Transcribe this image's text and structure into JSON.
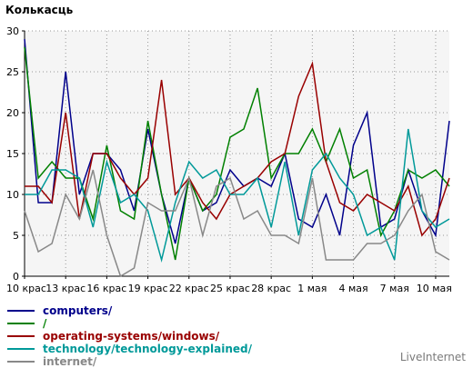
{
  "chart_data": {
    "type": "line",
    "ylabel": "Колькасць",
    "ylim": [
      0,
      30
    ],
    "yticks": [
      0,
      5,
      10,
      15,
      20,
      25,
      30
    ],
    "x_tick_labels": [
      "10 крас",
      "13 крас",
      "16 крас",
      "19 крас",
      "22 крас",
      "25 крас",
      "28 крас",
      "1 мая",
      "4 мая",
      "7 мая",
      "10 мая"
    ],
    "grid": true,
    "legend_position": "bottom-left",
    "series": [
      {
        "name": "computers/",
        "color": "#00008b",
        "values": [
          29,
          9,
          9,
          25,
          10,
          15,
          15,
          13,
          8,
          18,
          10,
          4,
          12,
          8,
          9,
          13,
          11,
          12,
          11,
          15,
          7,
          6,
          10,
          5,
          16,
          20,
          6,
          7,
          13,
          8,
          5,
          19
        ]
      },
      {
        "name": "/",
        "color": "#008000",
        "values": [
          28,
          12,
          14,
          12,
          12,
          7,
          16,
          8,
          7,
          19,
          10,
          2,
          12,
          8,
          10,
          17,
          18,
          23,
          12,
          15,
          15,
          18,
          14,
          18,
          12,
          13,
          5,
          8,
          13,
          12,
          13,
          11
        ]
      },
      {
        "name": "operating-systems/windows/",
        "color": "#990000",
        "values": [
          11,
          11,
          9,
          20,
          7,
          15,
          15,
          12,
          10,
          12,
          24,
          10,
          12,
          9,
          7,
          10,
          11,
          12,
          14,
          15,
          22,
          26,
          14,
          9,
          8,
          10,
          9,
          8,
          11,
          5,
          7,
          12
        ]
      },
      {
        "name": "technology/technology-explained/",
        "color": "#009999",
        "values": [
          10,
          10,
          13,
          13,
          12,
          6,
          14,
          9,
          10,
          8,
          2,
          9,
          14,
          12,
          13,
          10,
          10,
          12,
          6,
          14,
          5,
          13,
          15,
          12,
          10,
          5,
          6,
          2,
          18,
          8,
          6,
          7
        ]
      },
      {
        "name": "internet/",
        "color": "#888888",
        "values": [
          8,
          3,
          4,
          10,
          7,
          13,
          5,
          0,
          1,
          9,
          8,
          8,
          12,
          5,
          11,
          12,
          7,
          8,
          5,
          5,
          4,
          12,
          2,
          2,
          2,
          4,
          4,
          5,
          8,
          10,
          3,
          2
        ]
      }
    ]
  },
  "brand": "LiveInternet"
}
